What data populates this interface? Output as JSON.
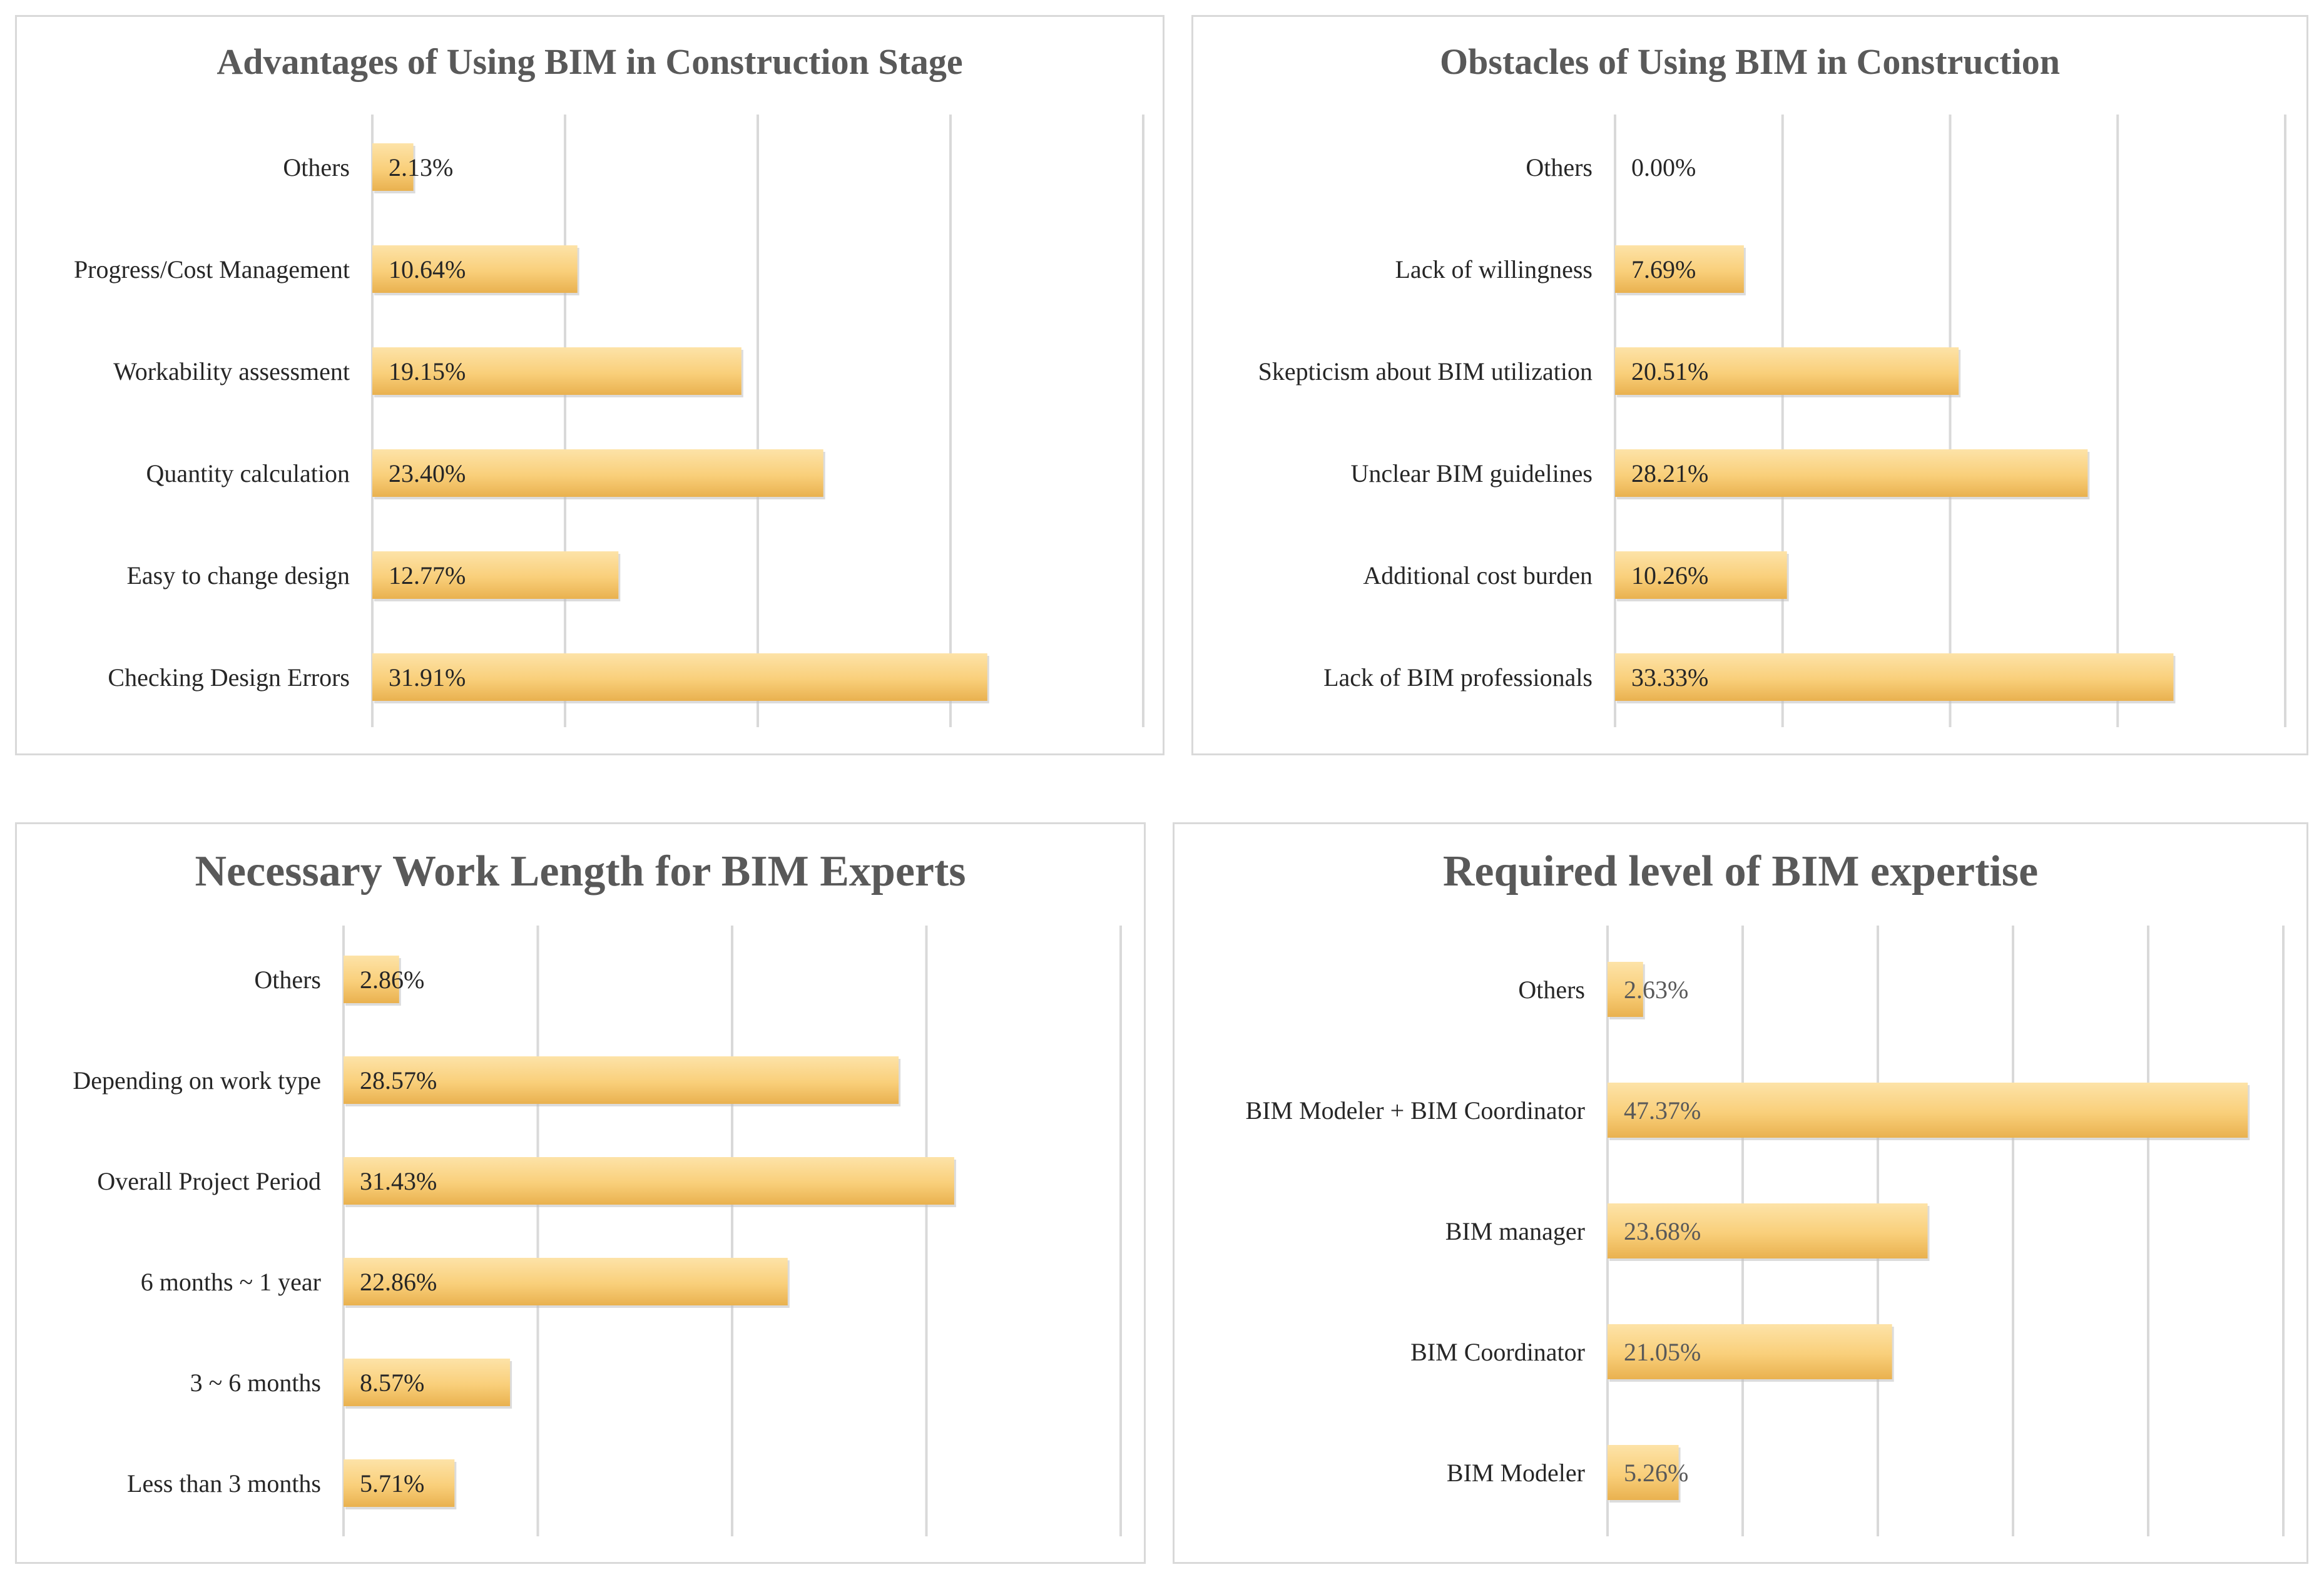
{
  "colors": {
    "bar_top": "#fde3a8",
    "bar_mid": "#f9cf7a",
    "bar_bottom": "#e9b14f",
    "grid": "#d9d9d9",
    "title": "#595959",
    "text": "#262626"
  },
  "chart_data": [
    {
      "type": "bar",
      "orientation": "horizontal",
      "title": "Advantages of Using BIM in Construction Stage",
      "categories": [
        "Others",
        "Progress/Cost Management",
        "Workability assessment",
        "Quantity calculation",
        "Easy to change design",
        "Checking Design Errors"
      ],
      "values": [
        2.13,
        10.64,
        19.15,
        23.4,
        12.77,
        31.91
      ],
      "value_labels": [
        "2.13%",
        "10.64%",
        "19.15%",
        "23.40%",
        "12.77%",
        "31.91%"
      ],
      "xlim": [
        0,
        40
      ],
      "grid_step": 10,
      "unit": "%"
    },
    {
      "type": "bar",
      "orientation": "horizontal",
      "title": "Obstacles of Using BIM in Construction",
      "categories": [
        "Others",
        "Lack of willingness",
        "Skepticism about BIM utilization",
        "Unclear BIM guidelines",
        "Additional cost burden",
        "Lack of BIM professionals"
      ],
      "values": [
        0.0,
        7.69,
        20.51,
        28.21,
        10.26,
        33.33
      ],
      "value_labels": [
        "0.00%",
        "7.69%",
        "20.51%",
        "28.21%",
        "10.26%",
        "33.33%"
      ],
      "xlim": [
        0,
        40
      ],
      "grid_step": 10,
      "unit": "%"
    },
    {
      "type": "bar",
      "orientation": "horizontal",
      "title": "Necessary Work Length for BIM Experts",
      "categories": [
        "Others",
        "Depending on work type",
        "Overall Project Period",
        "6 months ~ 1 year",
        "3 ~ 6 months",
        "Less than 3 months"
      ],
      "values": [
        2.86,
        28.57,
        31.43,
        22.86,
        8.57,
        5.71
      ],
      "value_labels": [
        "2.86%",
        "28.57%",
        "31.43%",
        "22.86%",
        "8.57%",
        "5.71%"
      ],
      "xlim": [
        0,
        40
      ],
      "grid_step": 10,
      "unit": "%"
    },
    {
      "type": "bar",
      "orientation": "horizontal",
      "title": "Required level of BIM expertise",
      "categories": [
        "Others",
        "BIM Modeler + BIM Coordinator",
        "BIM manager",
        "BIM Coordinator",
        "BIM Modeler"
      ],
      "values": [
        2.63,
        47.37,
        23.68,
        21.05,
        5.26
      ],
      "value_labels": [
        "2.63%",
        "47.37%",
        "23.68%",
        "21.05%",
        "5.26%"
      ],
      "xlim": [
        0,
        50
      ],
      "grid_step": 10,
      "unit": "%"
    }
  ]
}
